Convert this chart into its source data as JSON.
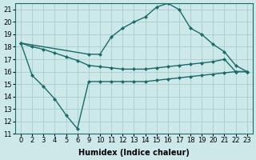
{
  "xlabel": "Humidex (Indice chaleur)",
  "bg_color": "#cce8e8",
  "grid_color": "#aacccc",
  "line_color": "#1a6b6b",
  "ylim": [
    11,
    21.5
  ],
  "yticks": [
    11,
    12,
    13,
    14,
    15,
    16,
    17,
    18,
    19,
    20,
    21
  ],
  "xtick_labels": [
    "0",
    "2",
    "3",
    "4",
    "5",
    "6",
    "9",
    "10",
    "11",
    "12",
    "13",
    "14",
    "15",
    "16",
    "17",
    "18",
    "19",
    "20",
    "21",
    "22",
    "23"
  ],
  "n_xticks": 21,
  "line1_y": [
    18.3,
    18.0,
    17.8,
    17.5,
    17.2,
    16.9,
    16.5,
    16.4,
    16.3,
    16.2,
    16.2,
    16.2,
    16.3,
    16.4,
    16.5,
    16.6,
    16.7,
    16.8,
    17.0,
    16.0,
    16.0
  ],
  "line2_y": [
    18.3,
    15.7,
    14.8,
    13.8,
    12.5,
    11.4,
    15.2,
    15.2,
    15.2,
    15.2,
    15.2,
    15.2,
    15.3,
    15.4,
    15.5,
    15.6,
    15.7,
    15.8,
    15.9,
    16.0,
    16.0
  ],
  "line3_x_idx": [
    0,
    6,
    7,
    8,
    9,
    10,
    11,
    12,
    13,
    14,
    15,
    16,
    17,
    18,
    19,
    20
  ],
  "line3_y": [
    18.3,
    17.4,
    17.4,
    18.8,
    19.5,
    20.0,
    20.4,
    21.2,
    21.5,
    21.0,
    19.5,
    19.0,
    18.2,
    17.6,
    16.5,
    16.0
  ],
  "marker": "D",
  "markersize": 2.5,
  "linewidth": 1.0
}
